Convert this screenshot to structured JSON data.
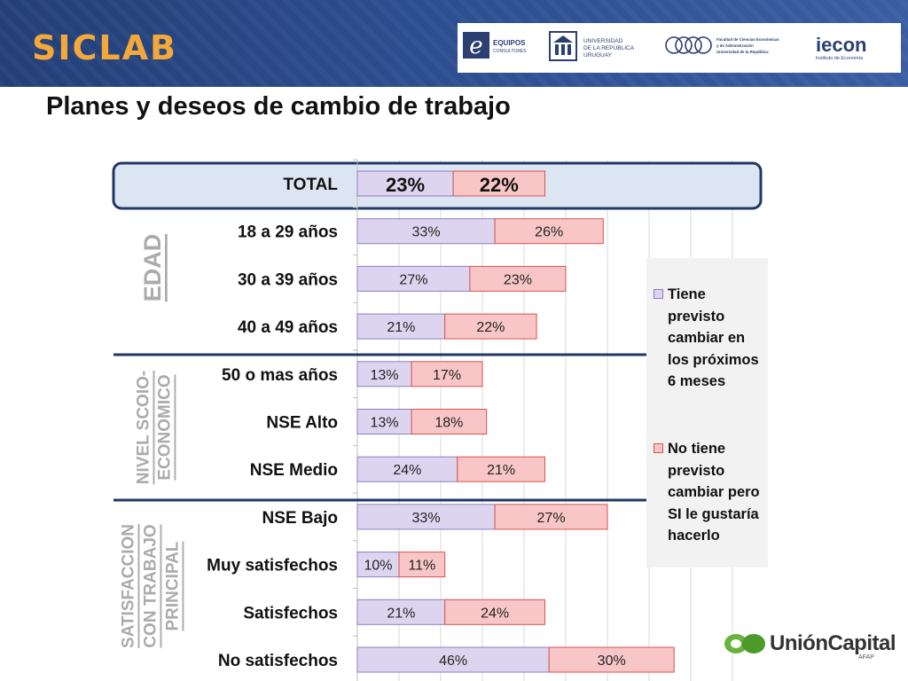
{
  "header": {
    "brand": "SICLAB",
    "logos": {
      "equipos_main": "EQUIPOS",
      "equipos_sub": "CONSULTORES",
      "udelar": [
        "UNIVERSIDAD",
        "DE LA REPÚBLICA",
        "URUGUAY"
      ],
      "fcea": [
        "Facultad de Ciencias Económicas",
        "y de Administración",
        "Universidad de la República"
      ],
      "iecon_main": "iecon",
      "iecon_sub": "Instituto de Economía"
    }
  },
  "slide": {
    "title": "Planes y deseos de cambio de trabajo"
  },
  "colors": {
    "series1": "#ddd5f0",
    "series1_border": "#8e7cc3",
    "series2": "#f8c6c6",
    "series2_border": "#d9534f",
    "highlight_fill": "#dce6f2",
    "highlight_border": "#1f3864",
    "group_text": "#ababab"
  },
  "chart_data": {
    "type": "bar",
    "orientation": "horizontal",
    "stacked": true,
    "categories": [
      "TOTAL",
      "18 a 29 años",
      "30 a 39 años",
      "40 a 49 años",
      "50 o mas años",
      "NSE Alto",
      "NSE Medio",
      "NSE Bajo",
      "Muy satisfechos",
      "Satisfechos",
      "No satisfechos"
    ],
    "series": [
      {
        "name": "Tiene previsto cambiar en los próximos 6 meses",
        "values": [
          23,
          33,
          27,
          21,
          13,
          13,
          24,
          33,
          10,
          21,
          46
        ],
        "labels": [
          "23%",
          "33%",
          "27%",
          "21%",
          "13%",
          "13%",
          "24%",
          "33%",
          "10%",
          "21%",
          "46%"
        ]
      },
      {
        "name": "No tiene previsto cambiar pero SI le gustaría hacerlo",
        "values": [
          22,
          26,
          23,
          22,
          17,
          18,
          21,
          27,
          11,
          24,
          30
        ],
        "labels": [
          "22%",
          "26%",
          "23%",
          "22%",
          "17%",
          "18%",
          "21%",
          "27%",
          "11%",
          "24%",
          "30%"
        ]
      }
    ],
    "xlim": [
      0,
      90
    ],
    "grid": true,
    "legend_position": "right",
    "highlighted_category": "TOTAL",
    "groups": [
      {
        "lines": [
          "EDAD"
        ]
      },
      {
        "lines": [
          "NIVEL SCOIO-",
          "ECONOMICO"
        ]
      },
      {
        "lines": [
          "SATISFACCION",
          "CON TRABAJO",
          "PRINCIPAL"
        ]
      }
    ]
  },
  "footer": {
    "union_capital_main": "UniónCapital",
    "union_capital_sub": "AFAP"
  }
}
